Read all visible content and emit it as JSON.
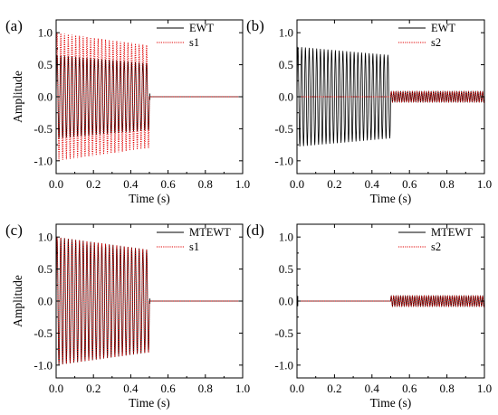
{
  "chart_data": [
    {
      "panel": "(a)",
      "type": "line",
      "xlabel": "Time (s)",
      "ylabel": "Amplitude",
      "xlim": [
        0.0,
        1.0
      ],
      "ylim": [
        -1.2,
        1.2
      ],
      "xticks": [
        "0.0",
        "0.2",
        "0.4",
        "0.6",
        "0.8",
        "1.0"
      ],
      "yticks": [
        "-1.0",
        "-0.5",
        "0.0",
        "0.5",
        "1.0"
      ],
      "legend": "top-right",
      "series": [
        {
          "name": "EWT",
          "color": "#000000",
          "style": "solid",
          "segments": [
            {
              "t_start": 0.0,
              "t_end": 0.5,
              "cycles": 25,
              "amp_start": 0.65,
              "amp_end": 0.52
            },
            {
              "t_start": 0.5,
              "t_end": 1.0,
              "cycles": 0,
              "amp_start": 0.0,
              "amp_end": 0.0
            }
          ],
          "spike": {
            "t": 0.502,
            "value": 0.05
          }
        },
        {
          "name": "s1",
          "color": "#e00000",
          "style": "dotted",
          "segments": [
            {
              "t_start": 0.0,
              "t_end": 0.5,
              "cycles": 25,
              "amp_start": 1.0,
              "amp_end": 0.8
            },
            {
              "t_start": 0.5,
              "t_end": 1.0,
              "cycles": 0,
              "amp_start": 0.0,
              "amp_end": 0.0
            }
          ]
        }
      ]
    },
    {
      "panel": "(b)",
      "type": "line",
      "xlabel": "Time (s)",
      "ylabel": "",
      "xlim": [
        0.0,
        1.0
      ],
      "ylim": [
        -1.2,
        1.2
      ],
      "xticks": [
        "0.0",
        "0.2",
        "0.4",
        "0.6",
        "0.8",
        "1.0"
      ],
      "yticks": [
        "-1.0",
        "-0.5",
        "0.0",
        "0.5",
        "1.0"
      ],
      "legend": "top-right",
      "series": [
        {
          "name": "EWT",
          "color": "#000000",
          "style": "solid",
          "segments": [
            {
              "t_start": 0.0,
              "t_end": 0.5,
              "cycles": 25,
              "amp_start": 0.78,
              "amp_end": 0.65
            },
            {
              "t_start": 0.5,
              "t_end": 1.0,
              "cycles": 40,
              "amp_start": 0.08,
              "amp_end": 0.08
            }
          ]
        },
        {
          "name": "s2",
          "color": "#e00000",
          "style": "dotted",
          "segments": [
            {
              "t_start": 0.0,
              "t_end": 0.5,
              "cycles": 0,
              "amp_start": 0.0,
              "amp_end": 0.0
            },
            {
              "t_start": 0.5,
              "t_end": 1.0,
              "cycles": 40,
              "amp_start": 0.08,
              "amp_end": 0.08
            }
          ]
        }
      ]
    },
    {
      "panel": "(c)",
      "type": "line",
      "xlabel": "Time (s)",
      "ylabel": "Amplitude",
      "xlim": [
        0.0,
        1.0
      ],
      "ylim": [
        -1.2,
        1.2
      ],
      "xticks": [
        "0.0",
        "0.2",
        "0.4",
        "0.6",
        "0.8",
        "1.0"
      ],
      "yticks": [
        "-1.0",
        "-0.5",
        "0.0",
        "0.5",
        "1.0"
      ],
      "legend": "top-right",
      "series": [
        {
          "name": "MTEWT",
          "color": "#000000",
          "style": "solid",
          "segments": [
            {
              "t_start": 0.0,
              "t_end": 0.5,
              "cycles": 25,
              "amp_start": 1.0,
              "amp_end": 0.8
            },
            {
              "t_start": 0.5,
              "t_end": 1.0,
              "cycles": 0,
              "amp_start": 0.0,
              "amp_end": 0.0
            }
          ],
          "spike": {
            "t": 0.502,
            "value": 0.04
          }
        },
        {
          "name": "s1",
          "color": "#e00000",
          "style": "dotted",
          "segments": [
            {
              "t_start": 0.0,
              "t_end": 0.5,
              "cycles": 25,
              "amp_start": 1.0,
              "amp_end": 0.8
            },
            {
              "t_start": 0.5,
              "t_end": 1.0,
              "cycles": 0,
              "amp_start": 0.0,
              "amp_end": 0.0
            }
          ]
        }
      ]
    },
    {
      "panel": "(d)",
      "type": "line",
      "xlabel": "Time (s)",
      "ylabel": "",
      "xlim": [
        0.0,
        1.0
      ],
      "ylim": [
        -1.2,
        1.2
      ],
      "xticks": [
        "0.0",
        "0.2",
        "0.4",
        "0.6",
        "0.8",
        "1.0"
      ],
      "yticks": [
        "-1.0",
        "-0.5",
        "0.0",
        "0.5",
        "1.0"
      ],
      "legend": "top-right",
      "series": [
        {
          "name": "MTEWT",
          "color": "#000000",
          "style": "solid",
          "segments": [
            {
              "t_start": 0.0,
              "t_end": 0.5,
              "cycles": 0,
              "amp_start": 0.0,
              "amp_end": 0.0
            },
            {
              "t_start": 0.5,
              "t_end": 1.0,
              "cycles": 40,
              "amp_start": 0.08,
              "amp_end": 0.08
            }
          ],
          "spike": {
            "t": 0.004,
            "value": 0.08
          }
        },
        {
          "name": "s2",
          "color": "#e00000",
          "style": "dotted",
          "segments": [
            {
              "t_start": 0.0,
              "t_end": 0.5,
              "cycles": 0,
              "amp_start": 0.0,
              "amp_end": 0.0
            },
            {
              "t_start": 0.5,
              "t_end": 1.0,
              "cycles": 40,
              "amp_start": 0.08,
              "amp_end": 0.08
            }
          ]
        }
      ]
    }
  ]
}
